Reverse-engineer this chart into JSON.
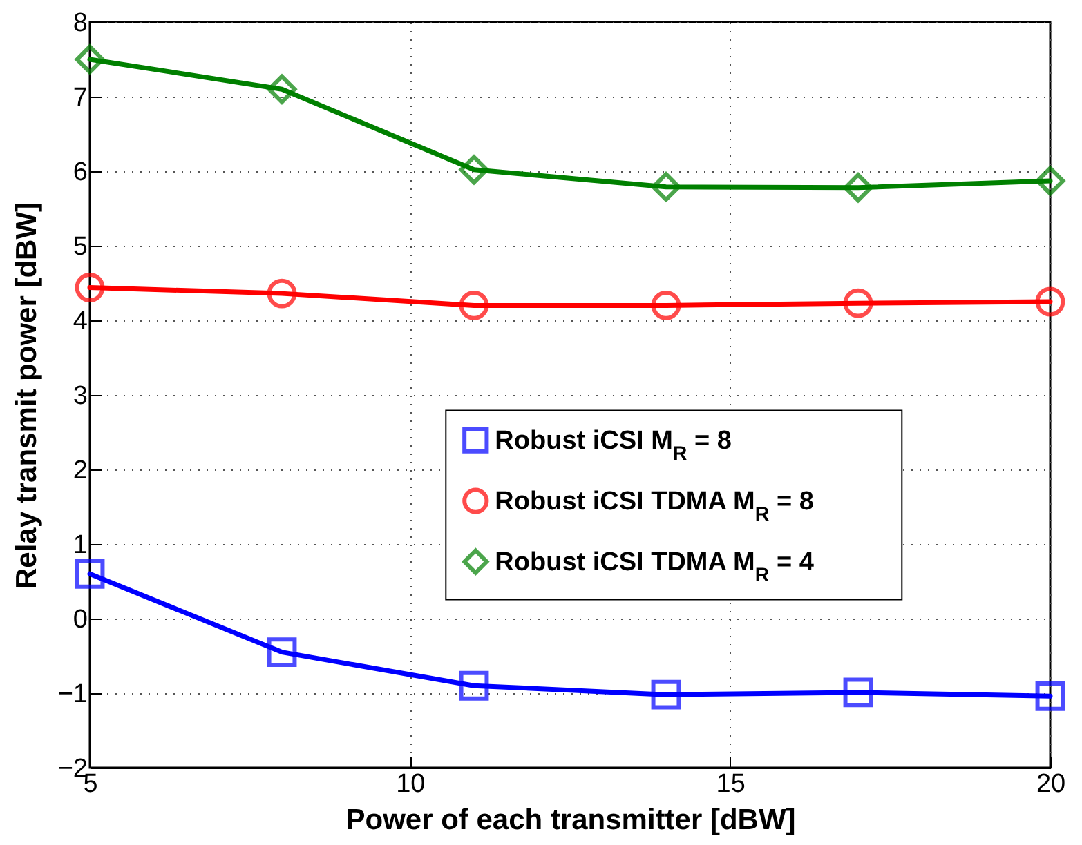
{
  "chart_data": {
    "type": "line",
    "xlabel": "Power of each transmitter [dBW]",
    "ylabel": "Relay transmit power [dBW]",
    "x": [
      5,
      8,
      11,
      14,
      17,
      20
    ],
    "series": [
      {
        "name": "Robust iCSI M$_{R}$ = 8",
        "color": "#0000ff",
        "marker": "square",
        "values": [
          0.6,
          -0.45,
          -0.9,
          -1.02,
          -0.99,
          -1.04
        ]
      },
      {
        "name": "Robust iCSI TDMA M$_{R}$ = 8",
        "color": "#ff0000",
        "marker": "circle",
        "values": [
          4.44,
          4.36,
          4.2,
          4.2,
          4.23,
          4.25
        ]
      },
      {
        "name": "Robust iCSI TDMA M$_{R}$ = 4",
        "color": "#008000",
        "marker": "diamond",
        "values": [
          7.5,
          7.1,
          6.02,
          5.79,
          5.78,
          5.87
        ]
      }
    ],
    "xlim": [
      5,
      20
    ],
    "xticks": [
      5,
      10,
      15,
      20
    ],
    "ylim": [
      -2,
      8
    ],
    "yticks": [
      -2,
      -1,
      0,
      1,
      2,
      3,
      4,
      5,
      6,
      7,
      8
    ],
    "grid": true,
    "legend": "right",
    "line_style": "solid"
  }
}
